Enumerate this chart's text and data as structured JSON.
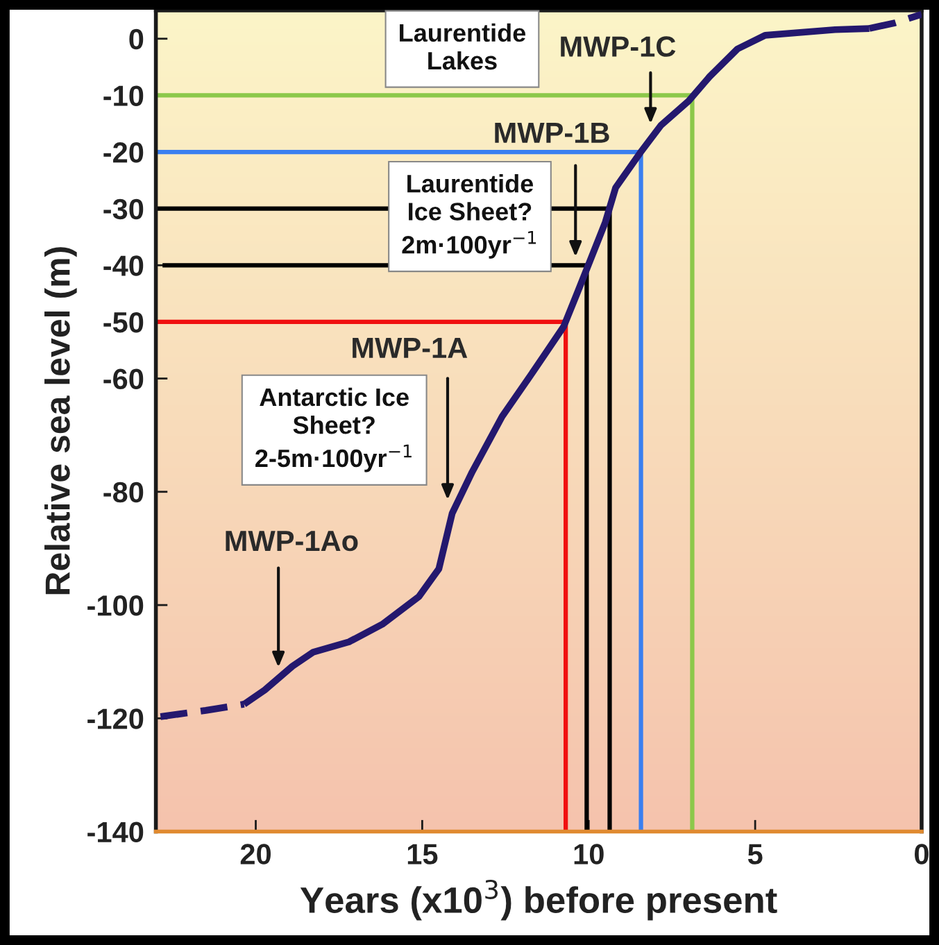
{
  "chart_data": {
    "type": "line",
    "xlabel": "Years (x10$^{3}$) before present",
    "ylabel": "Relative sea level (m)",
    "xlim": [
      23,
      0
    ],
    "ylim": [
      -140,
      5
    ],
    "xticks": [
      20,
      15,
      10,
      5,
      0
    ],
    "yticks": [
      0,
      -10,
      -20,
      -30,
      -40,
      -50,
      -60,
      -80,
      -100,
      -120,
      -140
    ],
    "grid": false,
    "legend": false,
    "marker": "none",
    "series": [
      {
        "color": "#24186e",
        "line_style": "dashed",
        "x": [
          22.86,
          21.5,
          20.35
        ],
        "values": [
          -119.7,
          -118.6,
          -117.5
        ]
      },
      {
        "color": "#24186e",
        "line_style": "solid",
        "x": [
          20.35,
          19.73,
          18.9,
          18.27,
          17.2,
          16.2,
          15.1,
          14.5,
          14.1,
          13.5,
          12.6,
          11.6,
          10.75,
          10.33,
          10.0,
          9.5,
          9.19,
          8.46,
          7.83,
          7.0,
          6.37,
          5.53,
          4.7,
          2.6,
          1.57
        ],
        "values": [
          -117.5,
          -115,
          -110.8,
          -108.3,
          -106.5,
          -103.4,
          -98.5,
          -93.6,
          -83.8,
          -76.5,
          -66.7,
          -58.2,
          -50.8,
          -44.7,
          -39.8,
          -32.4,
          -26.3,
          -20.2,
          -15.3,
          -11,
          -6.7,
          -1.8,
          0.6,
          1.6,
          1.8
        ]
      },
      {
        "color": "#24186e",
        "line_style": "dashed",
        "x": [
          1.57,
          0.8,
          0
        ],
        "values": [
          1.8,
          2.8,
          4.3
        ]
      },
      {
        "color": "#8cc84a",
        "line_style": "solid",
        "x": [
          23,
          6.89,
          6.89
        ],
        "values": [
          -10,
          -10,
          -140
        ]
      },
      {
        "color": "#3a7ff0",
        "line_style": "solid",
        "x": [
          23,
          8.43,
          8.43
        ],
        "values": [
          -20,
          -20,
          -140
        ]
      },
      {
        "color": "#000000",
        "line_style": "solid",
        "x": [
          23,
          9.37,
          9.37
        ],
        "values": [
          -30,
          -30,
          -140
        ]
      },
      {
        "color": "#000000",
        "line_style": "solid",
        "x": [
          22.8,
          10.06,
          10.06
        ],
        "values": [
          -40,
          -40,
          -140
        ]
      },
      {
        "color": "#f01010",
        "line_style": "solid",
        "x": [
          23,
          10.69,
          10.69
        ],
        "values": [
          -50,
          -50,
          -140
        ]
      }
    ],
    "annotations": [
      "MWP-1C",
      "MWP-1B",
      "MWP-1A",
      "MWP-1Ao",
      "Laurentide\nLakes",
      "Laurentide\nIce Sheet?\n2m·100yr$^{−1}$",
      "Antarctic Ice\nSheet?\n2-5m·100yr$^{−1}$"
    ]
  }
}
